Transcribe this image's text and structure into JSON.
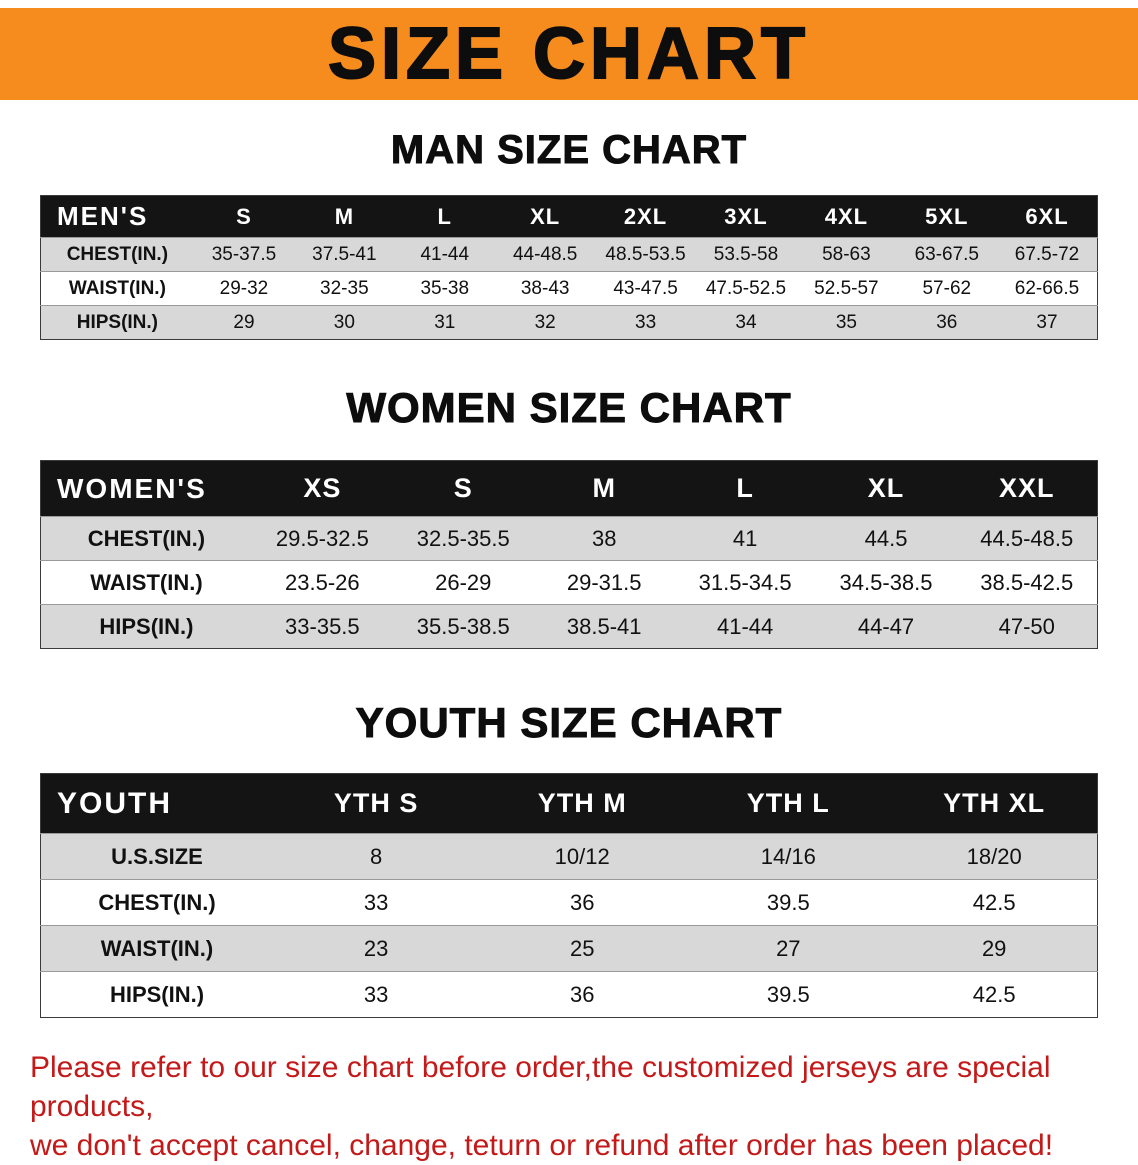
{
  "banner": {
    "title": "SIZE CHART"
  },
  "colors": {
    "banner_bg": "#F78C1E",
    "banner_text": "#0D0D0D",
    "table_header_bg": "#141414",
    "table_header_text": "#FFFFFF",
    "row_alt_bg": "#D8D8D8",
    "footer_text": "#C31919"
  },
  "sections": [
    {
      "heading": "MAN SIZE CHART",
      "table": {
        "header": [
          "MEN'S",
          "S",
          "M",
          "L",
          "XL",
          "2XL",
          "3XL",
          "4XL",
          "5XL",
          "6XL"
        ],
        "rows": [
          {
            "label": "CHEST(IN.)",
            "values": [
              "35-37.5",
              "37.5-41",
              "41-44",
              "44-48.5",
              "48.5-53.5",
              "53.5-58",
              "58-63",
              "63-67.5",
              "67.5-72"
            ]
          },
          {
            "label": "WAIST(IN.)",
            "values": [
              "29-32",
              "32-35",
              "35-38",
              "38-43",
              "43-47.5",
              "47.5-52.5",
              "52.5-57",
              "57-62",
              "62-66.5"
            ]
          },
          {
            "label": "HIPS(IN.)",
            "values": [
              "29",
              "30",
              "31",
              "32",
              "33",
              "34",
              "35",
              "36",
              "37"
            ]
          }
        ]
      }
    },
    {
      "heading": "WOMEN SIZE CHART",
      "table": {
        "header": [
          "WOMEN'S",
          "XS",
          "S",
          "M",
          "L",
          "XL",
          "XXL"
        ],
        "rows": [
          {
            "label": "CHEST(IN.)",
            "values": [
              "29.5-32.5",
              "32.5-35.5",
              "38",
              "41",
              "44.5",
              "44.5-48.5"
            ]
          },
          {
            "label": "WAIST(IN.)",
            "values": [
              "23.5-26",
              "26-29",
              "29-31.5",
              "31.5-34.5",
              "34.5-38.5",
              "38.5-42.5"
            ]
          },
          {
            "label": "HIPS(IN.)",
            "values": [
              "33-35.5",
              "35.5-38.5",
              "38.5-41",
              "41-44",
              "44-47",
              "47-50"
            ]
          }
        ]
      }
    },
    {
      "heading": "YOUTH SIZE CHART",
      "table": {
        "header": [
          "YOUTH",
          "YTH S",
          "YTH M",
          "YTH L",
          "YTH XL"
        ],
        "rows": [
          {
            "label": "U.S.SIZE",
            "values": [
              "8",
              "10/12",
              "14/16",
              "18/20"
            ]
          },
          {
            "label": "CHEST(IN.)",
            "values": [
              "33",
              "36",
              "39.5",
              "42.5"
            ]
          },
          {
            "label": "WAIST(IN.)",
            "values": [
              "23",
              "25",
              "27",
              "29"
            ]
          },
          {
            "label": "HIPS(IN.)",
            "values": [
              "33",
              "36",
              "39.5",
              "42.5"
            ]
          }
        ]
      }
    }
  ],
  "footer": {
    "line1": "Please refer to our size chart before order,the customized jerseys are special products,",
    "line2": "we don't accept cancel, change, teturn or refund after order has been placed!"
  }
}
